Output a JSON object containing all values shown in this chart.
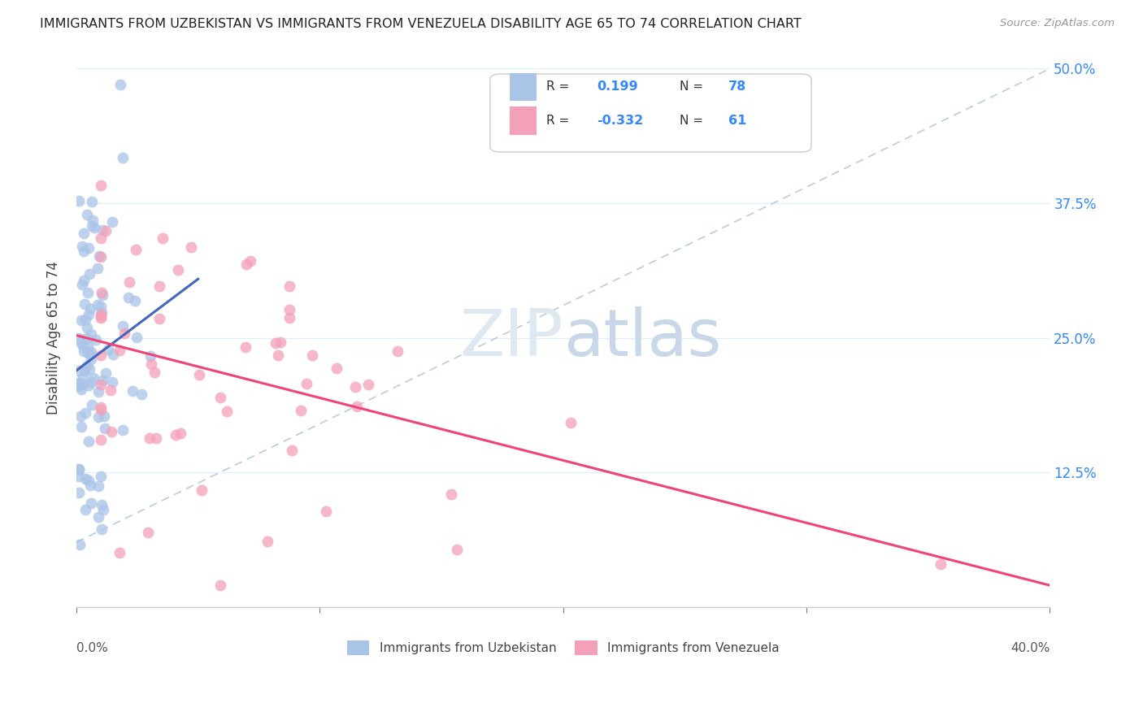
{
  "title": "IMMIGRANTS FROM UZBEKISTAN VS IMMIGRANTS FROM VENEZUELA DISABILITY AGE 65 TO 74 CORRELATION CHART",
  "source": "Source: ZipAtlas.com",
  "legend_uz": "Immigrants from Uzbekistan",
  "legend_ve": "Immigrants from Venezuela",
  "ylabel_label": "Disability Age 65 to 74",
  "R_uz": 0.199,
  "N_uz": 78,
  "R_ve": -0.332,
  "N_ve": 61,
  "color_uz": "#aac4e8",
  "color_ve": "#f4a0b8",
  "line_uz": "#4466bb",
  "line_ve": "#ee4477",
  "dash_line_color": "#bbccdd",
  "background_color": "#ffffff",
  "watermark_color": "#dde8f0",
  "xlim": [
    0.0,
    0.4
  ],
  "ylim": [
    0.0,
    0.5
  ],
  "yticks": [
    0.0,
    0.125,
    0.25,
    0.375,
    0.5
  ],
  "ytick_labels": [
    "",
    "12.5%",
    "25.0%",
    "37.5%",
    "50.0%"
  ],
  "xtick_left": "0.0%",
  "xtick_right": "40.0%",
  "grid_color": "#ddeeff",
  "spine_color": "#cccccc"
}
